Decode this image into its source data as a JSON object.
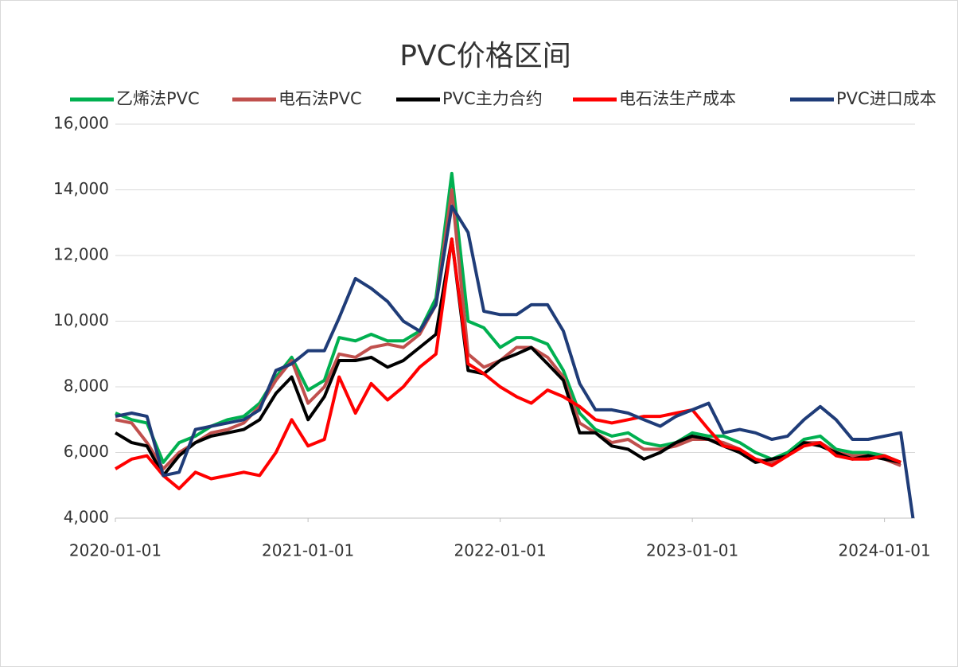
{
  "chart_data": {
    "type": "line",
    "title": "PVC价格区间",
    "x": [
      "2020-01-01",
      "2020-02-01",
      "2020-03-01",
      "2020-04-01",
      "2020-05-01",
      "2020-06-01",
      "2020-07-01",
      "2020-08-01",
      "2020-09-01",
      "2020-10-01",
      "2020-11-01",
      "2020-12-01",
      "2021-01-01",
      "2021-02-01",
      "2021-03-01",
      "2021-04-01",
      "2021-05-01",
      "2021-06-01",
      "2021-07-01",
      "2021-08-01",
      "2021-09-01",
      "2021-10-01",
      "2021-11-01",
      "2021-12-01",
      "2022-01-01",
      "2022-02-01",
      "2022-03-01",
      "2022-04-01",
      "2022-05-01",
      "2022-06-01",
      "2022-07-01",
      "2022-08-01",
      "2022-09-01",
      "2022-10-01",
      "2022-11-01",
      "2022-12-01",
      "2023-01-01",
      "2023-02-01",
      "2023-03-01",
      "2023-04-01",
      "2023-05-01",
      "2023-06-01",
      "2023-07-01",
      "2023-08-01",
      "2023-09-01",
      "2023-10-01",
      "2023-11-01",
      "2023-12-01",
      "2024-01-01",
      "2024-02-01",
      "2024-02-24"
    ],
    "series": [
      {
        "name": "乙烯法PVC",
        "color": "#00b050",
        "values": [
          7200,
          7000,
          6900,
          5700,
          6300,
          6500,
          6800,
          7000,
          7100,
          7500,
          8300,
          8900,
          7900,
          8200,
          9500,
          9400,
          9600,
          9400,
          9400,
          9700,
          10700,
          14500,
          10000,
          9800,
          9200,
          9500,
          9500,
          9300,
          8500,
          7200,
          6700,
          6500,
          6600,
          6300,
          6200,
          6300,
          6600,
          6500,
          6500,
          6300,
          6000,
          5800,
          6000,
          6400,
          6500,
          6100,
          6000,
          6000,
          5900,
          5700,
          null
        ]
      },
      {
        "name": "电石法PVC",
        "color": "#c0504d",
        "values": [
          7000,
          6900,
          6300,
          5500,
          6000,
          6300,
          6600,
          6700,
          6900,
          7400,
          8200,
          8800,
          7500,
          8000,
          9000,
          8900,
          9200,
          9300,
          9200,
          9600,
          10500,
          14000,
          9000,
          8600,
          8800,
          9200,
          9200,
          8900,
          8300,
          6900,
          6600,
          6300,
          6400,
          6100,
          6100,
          6200,
          6400,
          6400,
          6300,
          6100,
          5800,
          5700,
          5900,
          6300,
          6300,
          6000,
          5900,
          5900,
          5800,
          5600,
          null
        ]
      },
      {
        "name": "PVC主力合约",
        "color": "#000000",
        "values": [
          6600,
          6300,
          6200,
          5300,
          5900,
          6300,
          6500,
          6600,
          6700,
          7000,
          7800,
          8300,
          7000,
          7700,
          8800,
          8800,
          8900,
          8600,
          8800,
          9200,
          9600,
          12500,
          8500,
          8400,
          8800,
          9000,
          9200,
          8700,
          8200,
          6600,
          6600,
          6200,
          6100,
          5800,
          6000,
          6300,
          6500,
          6400,
          6200,
          6000,
          5700,
          5800,
          5900,
          6300,
          6200,
          6000,
          5800,
          5900,
          5800,
          5700,
          null
        ]
      },
      {
        "name": "电石法生产成本",
        "color": "#ff0000",
        "values": [
          5500,
          5800,
          5900,
          5300,
          4900,
          5400,
          5200,
          5300,
          5400,
          5300,
          6000,
          7000,
          6200,
          6400,
          8300,
          7200,
          8100,
          7600,
          8000,
          8600,
          9000,
          12500,
          8700,
          8400,
          8000,
          7700,
          7500,
          7900,
          7700,
          7400,
          7000,
          6900,
          7000,
          7100,
          7100,
          7200,
          7300,
          6700,
          6200,
          6100,
          5800,
          5600,
          5900,
          6200,
          6300,
          5900,
          5800,
          5800,
          5900,
          5700,
          null
        ]
      },
      {
        "name": "PVC进口成本",
        "color": "#1f3c78",
        "values": [
          7100,
          7200,
          7100,
          5300,
          5400,
          6700,
          6800,
          6900,
          7000,
          7300,
          8500,
          8700,
          9100,
          9100,
          10100,
          11300,
          11000,
          10600,
          10000,
          9700,
          10500,
          13500,
          12700,
          10300,
          10200,
          10200,
          10500,
          10500,
          9700,
          8100,
          7300,
          7300,
          7200,
          7000,
          6800,
          7100,
          7300,
          7500,
          6600,
          6700,
          6600,
          6400,
          6500,
          7000,
          7400,
          7000,
          6400,
          6400,
          6500,
          6600,
          4000
        ]
      }
    ],
    "xlim": [
      "2020-01-01",
      "2024-02-28"
    ],
    "xticks": [
      "2020-01-01",
      "2021-01-01",
      "2022-01-01",
      "2023-01-01",
      "2024-01-01"
    ],
    "ylim": [
      4000,
      16000
    ],
    "yticks": [
      {
        "value": 4000,
        "label": "4,000"
      },
      {
        "value": 6000,
        "label": "6,000"
      },
      {
        "value": 8000,
        "label": "8,000"
      },
      {
        "value": 10000,
        "label": "10,000"
      },
      {
        "value": 12000,
        "label": "12,000"
      },
      {
        "value": 14000,
        "label": "14,000"
      },
      {
        "value": 16000,
        "label": "16,000"
      }
    ],
    "grid": true
  }
}
